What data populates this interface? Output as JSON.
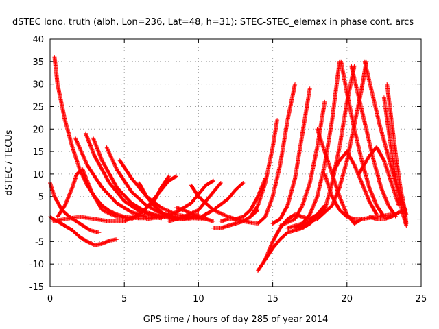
{
  "chart_data": {
    "type": "scatter",
    "title": "dSTEC Iono. truth (albh, Lon=236, Lat=48, h=31): STEC-STEC_elemax in phase cont. arcs",
    "xlabel": "GPS time / hours of day 285 of year 2014",
    "ylabel": "dSTEC  / TECUs",
    "xlim": [
      0,
      25
    ],
    "ylim": [
      -15,
      40
    ],
    "xticks": [
      "0",
      "5",
      "10",
      "15",
      "20",
      "25"
    ],
    "yticks": [
      "-15",
      "-10",
      "-5",
      "0",
      "5",
      "10",
      "15",
      "20",
      "25",
      "30",
      "35",
      "40"
    ],
    "grid": true,
    "marker": "+",
    "color": "#ff0000",
    "series": [
      {
        "x": [
          0.3,
          0.5,
          1.0,
          1.5,
          2.0,
          2.5,
          3.0,
          3.5,
          4.0,
          4.5,
          5.0,
          5.5,
          6.0,
          6.5
        ],
        "values": [
          36,
          30,
          22,
          16,
          11,
          7.5,
          5,
          3,
          1.8,
          1,
          0.5,
          0.3,
          0.2,
          0.2
        ]
      },
      {
        "x": [
          0.0,
          0.2,
          0.5,
          1.0,
          1.5,
          2.0,
          2.5,
          3.0,
          3.5,
          4.0,
          4.5
        ],
        "values": [
          0.5,
          0.0,
          -0.5,
          -1.5,
          -2.5,
          -4.0,
          -5.0,
          -5.8,
          -5.5,
          -4.8,
          -4.5
        ]
      },
      {
        "x": [
          0.0,
          0.3,
          0.8,
          1.3,
          2.0,
          2.7,
          3.3
        ],
        "values": [
          8,
          5,
          2,
          0.5,
          -1.0,
          -2.5,
          -3.0
        ]
      },
      {
        "x": [
          0.5,
          1.0,
          1.5,
          1.8,
          2.2,
          2.8,
          3.5,
          4.5,
          5.5
        ],
        "values": [
          0.5,
          3,
          7,
          10,
          11,
          6,
          2,
          0.5,
          0.2
        ]
      },
      {
        "x": [
          1.7,
          2.5,
          3.5,
          4.5,
          5.5,
          6.5,
          7.5
        ],
        "values": [
          18,
          12,
          7,
          3.5,
          1.5,
          0.5,
          0.2
        ]
      },
      {
        "x": [
          2.4,
          3.0,
          4.0,
          5.0,
          6.0,
          7.0,
          8.0,
          9.0
        ],
        "values": [
          19,
          14,
          8,
          4,
          1.8,
          0.8,
          0.3,
          0.1
        ]
      },
      {
        "x": [
          2.9,
          3.5,
          4.5,
          5.5,
          6.5,
          7.5,
          8.5,
          9.5
        ],
        "values": [
          18,
          13,
          7,
          3.5,
          1.5,
          0.5,
          0.2,
          0.1
        ]
      },
      {
        "x": [
          3.8,
          4.5,
          5.5,
          6.5,
          7.5,
          8.5,
          9.5,
          10.5
        ],
        "values": [
          16,
          11,
          6,
          3,
          1.2,
          0.5,
          0.2,
          0.1
        ]
      },
      {
        "x": [
          4.7,
          5.5,
          6.5,
          7.5,
          8.5,
          9.5,
          10.5
        ],
        "values": [
          13,
          9,
          5,
          2.5,
          1,
          0.4,
          0.2
        ]
      },
      {
        "x": [
          0.2,
          1.0,
          2.0,
          3.0,
          4.0,
          5.0,
          6.0,
          7.0,
          7.5,
          8.0
        ],
        "values": [
          -0.5,
          0.0,
          0.5,
          0.0,
          -0.5,
          -0.5,
          1.0,
          4.0,
          7.0,
          9.5
        ]
      },
      {
        "x": [
          6.0,
          6.5,
          7.0,
          7.5,
          8.0,
          8.5,
          9.0,
          9.5,
          10.0
        ],
        "values": [
          8,
          5,
          3,
          1.5,
          0.5,
          0.0,
          0.0,
          0.5,
          1.0
        ]
      },
      {
        "x": [
          5.5,
          6.0,
          6.5,
          7.0,
          7.5,
          8.0,
          8.5
        ],
        "values": [
          0.0,
          1.0,
          2.5,
          4.5,
          6.5,
          8.5,
          9.5
        ]
      },
      {
        "x": [
          6.5,
          7.5,
          8.5,
          9.5,
          10.0,
          10.5,
          11.0
        ],
        "values": [
          0.0,
          0.5,
          1.5,
          3.5,
          5.5,
          7.5,
          8.5
        ]
      },
      {
        "x": [
          8.0,
          9.0,
          10.0,
          10.5,
          11.0,
          11.5
        ],
        "values": [
          -0.5,
          0.5,
          2.0,
          4.0,
          6.0,
          8.0
        ]
      },
      {
        "x": [
          9.5,
          10.0,
          11.0,
          12.0,
          13.0,
          14.0
        ],
        "values": [
          7.5,
          5.0,
          2.0,
          0.5,
          -0.5,
          -1.0
        ]
      },
      {
        "x": [
          10.2,
          11.0,
          12.0,
          12.5,
          13.0
        ],
        "values": [
          0.5,
          2.0,
          4.5,
          6.5,
          8.0
        ]
      },
      {
        "x": [
          8.5,
          9.0,
          9.5,
          10.0,
          10.5,
          11.0
        ],
        "values": [
          2.5,
          2.0,
          1.2,
          0.5,
          0.0,
          -0.5
        ]
      },
      {
        "x": [
          11.0,
          11.5,
          12.0,
          12.5,
          13.0,
          13.5,
          14.0
        ],
        "values": [
          -2.0,
          -2.0,
          -1.5,
          -1.0,
          -0.5,
          0.5,
          2.0
        ]
      },
      {
        "x": [
          11.5,
          12.0,
          12.5,
          13.0,
          13.5,
          14.0,
          14.5
        ],
        "values": [
          -0.5,
          0.0,
          0.0,
          0.5,
          2.0,
          5.0,
          9.0
        ]
      },
      {
        "x": [
          13.5,
          14.0,
          14.5,
          15.0,
          15.3
        ],
        "values": [
          0.5,
          3.0,
          8.0,
          16.0,
          22.0
        ]
      },
      {
        "x": [
          14.0,
          14.5,
          15.0,
          15.5,
          16.0,
          16.5,
          17.0,
          17.5,
          18.0
        ],
        "values": [
          -11.5,
          -9.0,
          -6.5,
          -4.5,
          -3.0,
          -2.5,
          -2.0,
          -1.0,
          0.5
        ]
      },
      {
        "x": [
          14.5,
          15.0,
          15.5,
          16.0,
          16.5,
          17.0,
          17.5,
          18.0,
          18.5
        ],
        "values": [
          -9.0,
          -5.0,
          -2.0,
          0.0,
          1.0,
          0.5,
          0.0,
          1.0,
          3.0
        ]
      },
      {
        "x": [
          14.0,
          14.5,
          15.0,
          15.5,
          16.0,
          16.5
        ],
        "values": [
          -1.0,
          0.5,
          5.0,
          12.0,
          22.0,
          30.0
        ]
      },
      {
        "x": [
          15.0,
          15.5,
          16.0,
          16.5,
          17.0,
          17.5
        ],
        "values": [
          -1.0,
          0.0,
          3.0,
          9.0,
          19.0,
          29.0
        ]
      },
      {
        "x": [
          15.5,
          16.5,
          17.0,
          17.5,
          18.0,
          18.5
        ],
        "values": [
          -1.5,
          0.0,
          3.0,
          8.0,
          16.0,
          26.0
        ]
      },
      {
        "x": [
          16.0,
          17.0,
          17.5,
          18.0,
          18.5,
          19.0,
          19.5
        ],
        "values": [
          -2.0,
          -1.0,
          1.0,
          5.0,
          12.0,
          22.0,
          35.0
        ]
      },
      {
        "x": [
          16.5,
          17.5,
          18.5,
          19.0,
          19.5,
          20.0,
          20.5
        ],
        "values": [
          -2.0,
          -1.0,
          2.0,
          8.0,
          16.0,
          26.0,
          34.0
        ]
      },
      {
        "x": [
          17.0,
          18.0,
          19.0,
          19.5,
          20.0,
          20.5,
          21.0,
          21.3
        ],
        "values": [
          -1.0,
          0.0,
          3.0,
          7.0,
          13.0,
          21.0,
          29.0,
          35.0
        ]
      },
      {
        "x": [
          18.0,
          18.5,
          19.0,
          19.5,
          20.0,
          20.5,
          21.0
        ],
        "values": [
          20.0,
          15.0,
          10.0,
          5.0,
          1.0,
          -1.0,
          0.0
        ]
      },
      {
        "x": [
          19.6,
          20.0,
          20.5,
          21.0,
          21.5,
          22.0,
          22.5
        ],
        "values": [
          35.0,
          28.0,
          20.0,
          13.0,
          7.0,
          3.0,
          0.5
        ]
      },
      {
        "x": [
          20.3,
          20.8,
          21.3,
          21.8,
          22.3,
          22.8,
          23.3
        ],
        "values": [
          34.0,
          27.0,
          20.0,
          13.0,
          7.0,
          3.0,
          0.5
        ]
      },
      {
        "x": [
          21.2,
          21.7,
          22.2,
          22.7,
          23.2,
          23.7,
          24.0
        ],
        "values": [
          35.0,
          28.0,
          21.0,
          15.0,
          9.0,
          4.0,
          1.0
        ]
      },
      {
        "x": [
          22.7,
          23.0,
          23.3,
          23.6,
          23.9,
          24.0
        ],
        "values": [
          30.0,
          22.0,
          14.0,
          7.0,
          2.0,
          -1.0
        ]
      },
      {
        "x": [
          22.5,
          22.8,
          23.1,
          23.4,
          23.7,
          24.0
        ],
        "values": [
          27.0,
          20.0,
          13.0,
          7.0,
          2.0,
          -1.5
        ]
      },
      {
        "x": [
          20.8,
          21.5,
          22.0,
          22.5,
          23.0,
          23.5
        ],
        "values": [
          10.0,
          14.0,
          16.0,
          13.0,
          8.0,
          3.0
        ]
      },
      {
        "x": [
          19.0,
          19.5,
          20.0,
          20.5,
          21.0,
          21.5,
          22.0
        ],
        "values": [
          10.0,
          13.0,
          15.0,
          12.0,
          8.0,
          4.0,
          1.0
        ]
      },
      {
        "x": [
          21.5,
          22.0,
          22.5,
          23.0,
          23.5,
          24.0
        ],
        "values": [
          0.5,
          0.0,
          0.0,
          0.5,
          1.5,
          2.0
        ]
      },
      {
        "x": [
          18.5,
          19.0,
          19.5,
          20.0,
          20.5,
          21.0,
          22.0,
          23.0
        ],
        "values": [
          10.0,
          5.0,
          2.0,
          0.5,
          0.0,
          0.0,
          0.5,
          1.0
        ]
      }
    ]
  }
}
